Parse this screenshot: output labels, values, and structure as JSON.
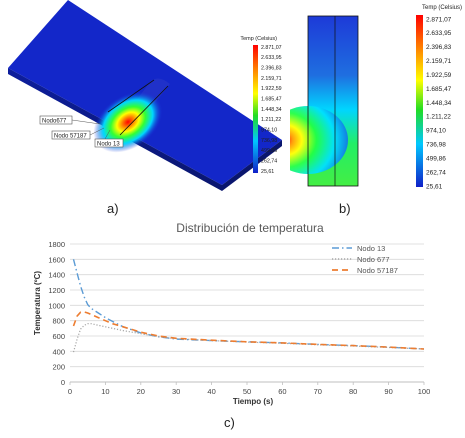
{
  "panel_a": {
    "caption": "a)",
    "node_labels": [
      "Nodo677",
      "Nodo 57187",
      "Nodo 13"
    ],
    "colorbar_title": "Temp (Celsius)",
    "colorbar_ticks": [
      "2.871,07",
      "2.633,95",
      "2.396,83",
      "2.159,71",
      "1.922,59",
      "1.685,47",
      "1.448,34",
      "1.211,22",
      "974,10",
      "736,98",
      "499,86",
      "262,74",
      "25,61"
    ]
  },
  "panel_b": {
    "caption": "b)",
    "colorbar_title": "Temp (Celsius)",
    "colorbar_ticks": [
      "2.871,07",
      "2.633,95",
      "2.396,83",
      "2.159,71",
      "1.922,59",
      "1.685,47",
      "1.448,34",
      "1.211,22",
      "974,10",
      "736,98",
      "499,86",
      "262,74",
      "25,61"
    ]
  },
  "panel_c": {
    "caption": "c)"
  },
  "colors": {
    "nodo13": "#5b9bd5",
    "nodo677": "#a5a5a5",
    "nodo57187": "#ed7d31",
    "grid": "#d9d9d9",
    "axis_text": "#444444"
  },
  "chart_data": {
    "type": "line",
    "title": "Distribución de temperatura",
    "xlabel": "Tiempo (s)",
    "ylabel": "Temperatura (ºC)",
    "xlim": [
      0,
      100
    ],
    "ylim": [
      0,
      1800
    ],
    "xticks": [
      0,
      10,
      20,
      30,
      40,
      50,
      60,
      70,
      80,
      90,
      100
    ],
    "yticks": [
      0,
      200,
      400,
      600,
      800,
      1000,
      1200,
      1400,
      1600,
      1800
    ],
    "legend_position": "top-right",
    "grid": "horizontal",
    "series": [
      {
        "name": "Nodo 13",
        "style": "dash-dot",
        "x": [
          1,
          2,
          3,
          4,
          5,
          6,
          8,
          10,
          12,
          15,
          20,
          25,
          30,
          40,
          50,
          60,
          70,
          80,
          90,
          100
        ],
        "y": [
          1600,
          1420,
          1250,
          1110,
          1010,
          960,
          900,
          840,
          790,
          720,
          640,
          590,
          560,
          540,
          525,
          510,
          490,
          475,
          455,
          430
        ]
      },
      {
        "name": "Nodo 677",
        "style": "dotted",
        "x": [
          1,
          2,
          3,
          4,
          5,
          6,
          8,
          10,
          12,
          15,
          20,
          25,
          30,
          40,
          50,
          60,
          70,
          80,
          90,
          100
        ],
        "y": [
          390,
          560,
          690,
          740,
          760,
          760,
          740,
          720,
          700,
          670,
          630,
          590,
          565,
          540,
          520,
          505,
          485,
          470,
          450,
          430
        ]
      },
      {
        "name": "Nodo 57187",
        "style": "dashed",
        "x": [
          1,
          2,
          3,
          4,
          5,
          6,
          8,
          10,
          12,
          15,
          20,
          25,
          30,
          40,
          50,
          60,
          70,
          80,
          90,
          100
        ],
        "y": [
          730,
          860,
          910,
          915,
          900,
          880,
          840,
          800,
          760,
          720,
          650,
          600,
          570,
          545,
          525,
          510,
          490,
          475,
          455,
          430
        ]
      }
    ]
  }
}
